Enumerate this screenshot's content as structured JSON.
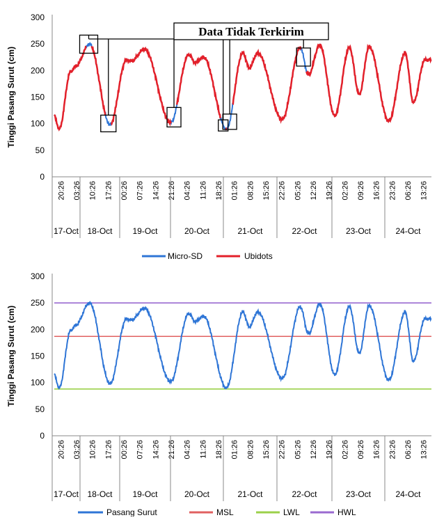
{
  "chart_data": [
    {
      "type": "line",
      "ylabel": "Tinggi Pasang Surut (cm)",
      "ylim": [
        0,
        300
      ],
      "yticks": [
        0,
        50,
        100,
        150,
        200,
        250,
        300
      ],
      "x_time_labels": [
        "20:26",
        "03:26",
        "10:26",
        "17:26",
        "00:26",
        "07:26",
        "14:26",
        "21:26",
        "04:26",
        "11:26",
        "18:26",
        "01:26",
        "08:26",
        "15:26",
        "22:26",
        "05:26",
        "12:26",
        "19:26",
        "02:26",
        "09:26",
        "16:26",
        "23:26",
        "06:26",
        "13:26"
      ],
      "x_date_labels": [
        "17-Oct",
        "18-Oct",
        "19-Oct",
        "20-Oct",
        "21-Oct",
        "22-Oct",
        "23-Oct",
        "24-Oct"
      ],
      "grid": false,
      "legend": "bottom",
      "series": [
        {
          "name": "Micro-SD",
          "color": "#2E75D6"
        },
        {
          "name": "Ubidots",
          "color": "#E3202A"
        }
      ],
      "tide_extrema": [
        {
          "t": 0,
          "v": 115
        },
        {
          "t": 3,
          "v": 90
        },
        {
          "t": 10,
          "v": 198
        },
        {
          "t": 13,
          "v": 208
        },
        {
          "t": 21.5,
          "v": 250
        },
        {
          "t": 34,
          "v": 98
        },
        {
          "t": 44,
          "v": 220
        },
        {
          "t": 47,
          "v": 218
        },
        {
          "t": 55,
          "v": 240
        },
        {
          "t": 71,
          "v": 102
        },
        {
          "t": 82,
          "v": 230
        },
        {
          "t": 86,
          "v": 215
        },
        {
          "t": 91,
          "v": 225
        },
        {
          "t": 105,
          "v": 90
        },
        {
          "t": 115,
          "v": 233
        },
        {
          "t": 119,
          "v": 205
        },
        {
          "t": 124,
          "v": 233
        },
        {
          "t": 139,
          "v": 108
        },
        {
          "t": 150,
          "v": 243
        },
        {
          "t": 155,
          "v": 192
        },
        {
          "t": 162,
          "v": 248
        },
        {
          "t": 171,
          "v": 115
        },
        {
          "t": 180,
          "v": 243
        },
        {
          "t": 186,
          "v": 155
        },
        {
          "t": 192,
          "v": 245
        },
        {
          "t": 204,
          "v": 105
        },
        {
          "t": 214,
          "v": 233
        },
        {
          "t": 219,
          "v": 140
        },
        {
          "t": 226,
          "v": 220
        }
      ],
      "annotation": {
        "text": "Data Tidak Terkirim",
        "gap_times": [
          21,
          33,
          73,
          103,
          107,
          152
        ]
      }
    },
    {
      "type": "line",
      "ylabel": "Tinggi Pasang Surut (cm)",
      "ylim": [
        0,
        300
      ],
      "yticks": [
        0,
        50,
        100,
        150,
        200,
        250,
        300
      ],
      "x_time_labels": [
        "20:26",
        "03:26",
        "10:26",
        "17:26",
        "00:26",
        "07:26",
        "14:26",
        "21:26",
        "04:26",
        "11:26",
        "18:26",
        "01:26",
        "08:26",
        "15:26",
        "22:26",
        "05:26",
        "12:26",
        "19:26",
        "02:26",
        "09:26",
        "16:26",
        "23:26",
        "06:26",
        "13:26"
      ],
      "x_date_labels": [
        "17-Oct",
        "18-Oct",
        "19-Oct",
        "20-Oct",
        "21-Oct",
        "22-Oct",
        "23-Oct",
        "24-Oct"
      ],
      "grid": false,
      "legend": "bottom",
      "series": [
        {
          "name": "Pasang Surut",
          "color": "#2E75D6"
        },
        {
          "name": "MSL",
          "color": "#E06060",
          "value": 187
        },
        {
          "name": "LWL",
          "color": "#9BD14A",
          "value": 88
        },
        {
          "name": "HWL",
          "color": "#9A6AD0",
          "value": 250
        }
      ]
    }
  ]
}
